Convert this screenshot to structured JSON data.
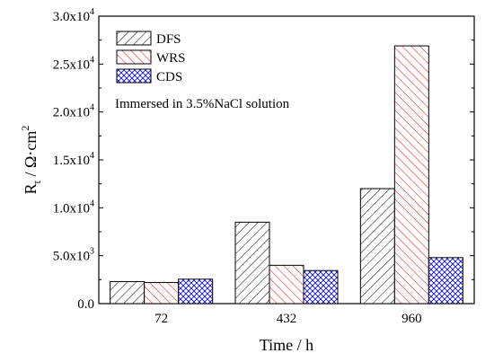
{
  "chart_data": {
    "type": "bar",
    "xlabel": "Time / h",
    "ylabel": {
      "base": "R",
      "sub": "t",
      "mid": " / Ω·cm",
      "sup": "2"
    },
    "categories": [
      "72",
      "432",
      "960"
    ],
    "series": [
      {
        "name": "DFS",
        "values": [
          2300,
          8500,
          12000
        ],
        "color": "#000000",
        "pattern": "hatch-right"
      },
      {
        "name": "WRS",
        "values": [
          2200,
          4000,
          26900
        ],
        "color": "#ff0000",
        "pattern": "hatch-left"
      },
      {
        "name": "CDS",
        "values": [
          2550,
          3450,
          4800
        ],
        "color": "#0000ff",
        "pattern": "crosshatch"
      }
    ],
    "ylim": [
      0,
      30000
    ],
    "yticks": [
      {
        "value": 0,
        "label": "0.0"
      },
      {
        "value": 5000,
        "mantissa": "5.0x10",
        "exp": "3"
      },
      {
        "value": 10000,
        "mantissa": "1.0x10",
        "exp": "4"
      },
      {
        "value": 15000,
        "mantissa": "1.5x10",
        "exp": "4"
      },
      {
        "value": 20000,
        "mantissa": "2.0x10",
        "exp": "4"
      },
      {
        "value": 25000,
        "mantissa": "2.5x10",
        "exp": "4"
      },
      {
        "value": 30000,
        "mantissa": "3.0x10",
        "exp": "4"
      }
    ],
    "annotation": "Immersed in 3.5%NaCl solution",
    "legend_position": "top-left",
    "grid": false
  }
}
